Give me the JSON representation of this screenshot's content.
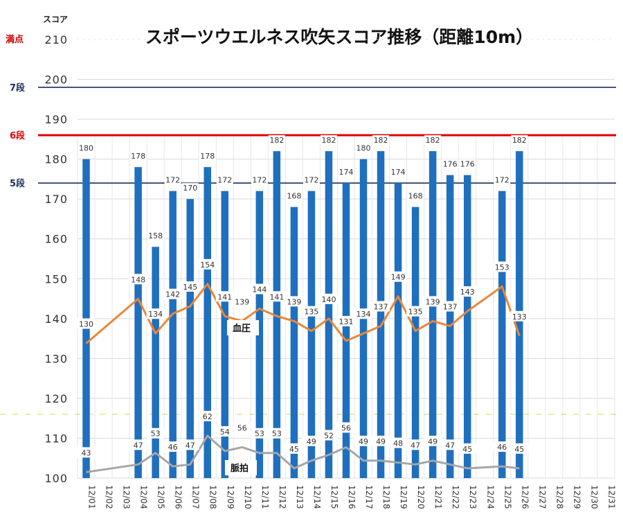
{
  "chart_data": {
    "type": "bar",
    "title": "スポーツウエルネス吹矢スコア推移（距離10m）",
    "ylabel": "スコア",
    "ylim": [
      100,
      210
    ],
    "yticks": [
      100,
      110,
      120,
      130,
      140,
      150,
      160,
      170,
      180,
      190,
      200,
      210
    ],
    "categories": [
      "12/01",
      "12/02",
      "12/03",
      "12/04",
      "12/05",
      "12/06",
      "12/07",
      "12/08",
      "12/09",
      "12/10",
      "12/11",
      "12/12",
      "12/13",
      "12/14",
      "12/15",
      "12/16",
      "12/17",
      "12/18",
      "12/19",
      "12/20",
      "12/21",
      "12/22",
      "12/23",
      "12/24",
      "12/25",
      "12/26",
      "12/27",
      "12/28",
      "12/29",
      "12/30",
      "12/31"
    ],
    "series": [
      {
        "values": [
          180,
          null,
          null,
          178,
          158,
          172,
          170,
          178,
          172,
          null,
          172,
          182,
          168,
          172,
          182,
          174,
          180,
          182,
          174,
          168,
          182,
          176,
          176,
          null,
          172,
          182,
          null,
          null,
          null,
          null,
          null
        ]
      },
      {
        "name": "血圧",
        "values": [
          130,
          null,
          null,
          148,
          134,
          142,
          145,
          154,
          141,
          139,
          144,
          141,
          139,
          135,
          140,
          131,
          134,
          137,
          149,
          135,
          139,
          137,
          143,
          null,
          153,
          133,
          null,
          null,
          null,
          null,
          null
        ]
      },
      {
        "name": "脈拍",
        "values": [
          43,
          null,
          null,
          47,
          53,
          46,
          47,
          62,
          54,
          56,
          53,
          53,
          45,
          49,
          52,
          56,
          49,
          49,
          48,
          47,
          49,
          47,
          45,
          null,
          46,
          45,
          null,
          null,
          null,
          null,
          null
        ]
      }
    ],
    "reference_lines": [
      {
        "label": "満点",
        "value": 210,
        "color": "#cc0000"
      },
      {
        "label": "7段",
        "value": 198,
        "color": "#1a2f5a"
      },
      {
        "label": "6段",
        "value": 186,
        "color": "#e00000"
      },
      {
        "label": "5段",
        "value": 174,
        "color": "#1a2f5a"
      }
    ],
    "colors": {
      "bars": "#1f6fbf",
      "血圧": "#e8873a",
      "脈拍": "#a6a6a6"
    },
    "grid": true
  }
}
